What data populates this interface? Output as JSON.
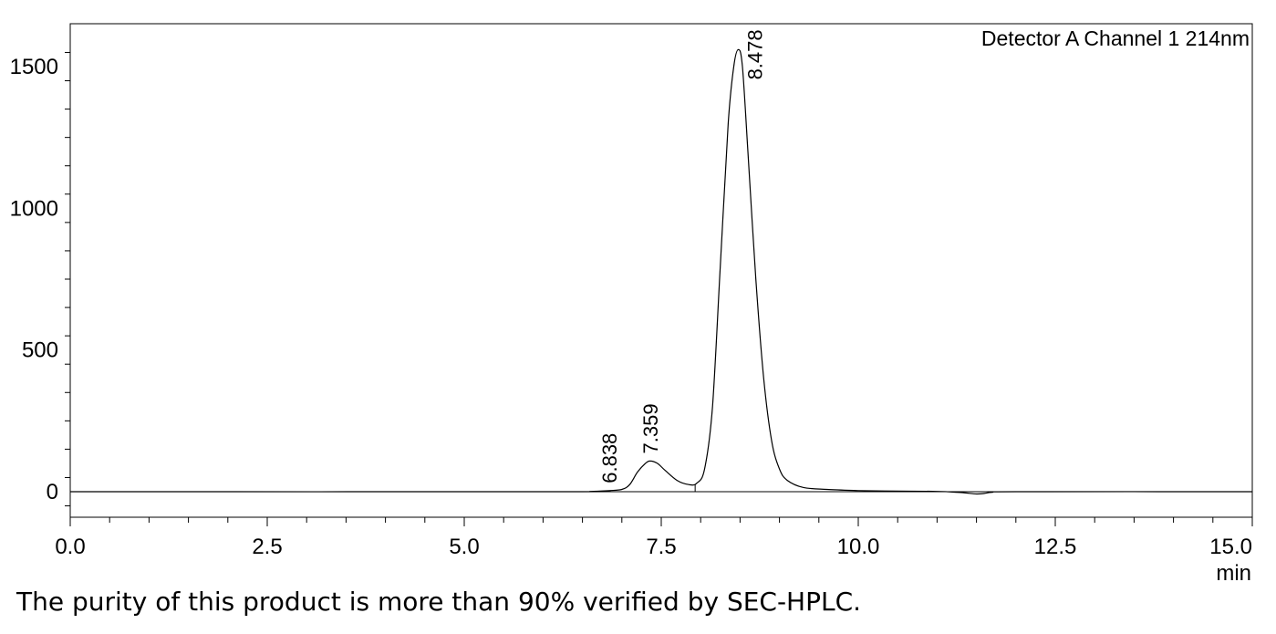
{
  "chart_data": {
    "type": "line",
    "title": "Detector A Channel 1 214nm",
    "xlabel": "min",
    "ylabel": "",
    "xlim": [
      0,
      15
    ],
    "ylim": [
      -90,
      1650
    ],
    "x_ticks": [
      "0.0",
      "2.5",
      "5.0",
      "7.5",
      "10.0",
      "12.5",
      "15.0"
    ],
    "y_ticks": [
      "0",
      "500",
      "1000",
      "1500"
    ],
    "grid": false,
    "series": [
      {
        "x": [
          0.0,
          6.3,
          6.6,
          6.838,
          7.0,
          7.1,
          7.2,
          7.3,
          7.359,
          7.45,
          7.55,
          7.7,
          7.85,
          7.95,
          8.05,
          8.15,
          8.25,
          8.35,
          8.42,
          8.478,
          8.53,
          8.6,
          8.7,
          8.8,
          8.9,
          9.0,
          9.1,
          9.3,
          9.6,
          10.0,
          10.5,
          11.0,
          11.3,
          11.5,
          11.6,
          11.7,
          12.0,
          15.0
        ],
        "y": [
          0,
          0,
          1,
          4,
          8,
          25,
          70,
          100,
          108,
          100,
          75,
          40,
          25,
          30,
          80,
          300,
          800,
          1300,
          1500,
          1560,
          1500,
          1200,
          750,
          400,
          180,
          80,
          40,
          15,
          8,
          4,
          2,
          1,
          -3,
          -8,
          -6,
          -2,
          0,
          0
        ]
      }
    ],
    "peaks": [
      {
        "label": "6.838",
        "x": 6.838,
        "y": 4
      },
      {
        "label": "7.359",
        "x": 7.359,
        "y": 108
      },
      {
        "label": "8.478",
        "x": 8.478,
        "y": 1560
      }
    ],
    "integration_marks": [
      7.93
    ]
  },
  "caption": "The purity of this product is more than 90% verified by SEC-HPLC."
}
